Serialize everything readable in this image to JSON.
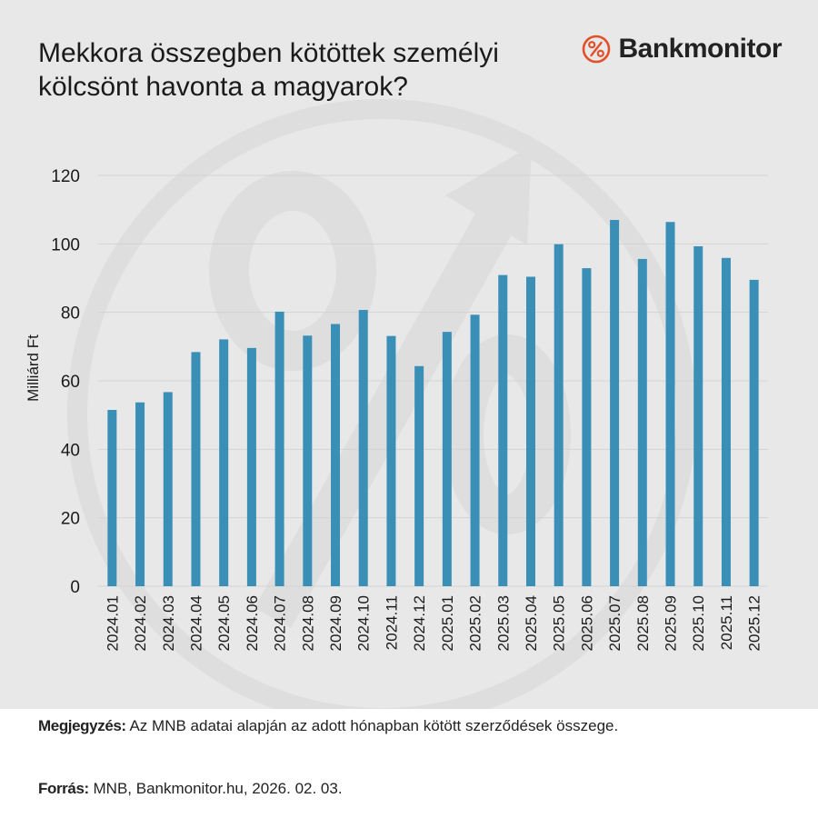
{
  "title": "Mekkora összegben kötöttek személyi kölcsönt havonta a magyarok?",
  "brand": {
    "name": "Bankmonitor",
    "icon": "percent-circle-icon",
    "icon_color": "#e2502a"
  },
  "note": {
    "label": "Megjegyzés:",
    "text": " Az MNB adatai alapján az adott hónapban kötött szerződések összege."
  },
  "source": {
    "label": "Forrás:",
    "text": " MNB, Bankmonitor.hu, 2026. 02. 03."
  },
  "colors": {
    "bar": "#3a8fb7",
    "grid": "#d3d3d3",
    "background": "#e8e8e8",
    "watermark": "#dcdcdc"
  },
  "chart_data": {
    "type": "bar",
    "title": "Mekkora összegben kötöttek személyi kölcsönt havonta a magyarok?",
    "xlabel": "",
    "ylabel": "Milliárd Ft",
    "ylim": [
      0,
      120
    ],
    "yticks": [
      0,
      20,
      40,
      60,
      80,
      100,
      120
    ],
    "grid": true,
    "categories": [
      "2024.01",
      "2024.02",
      "2024.03",
      "2024.04",
      "2024.05",
      "2024.06",
      "2024.07",
      "2024.08",
      "2024.09",
      "2024.10",
      "2024.11",
      "2024.12",
      "2025.01",
      "2025.02",
      "2025.03",
      "2025.04",
      "2025.05",
      "2025.06",
      "2025.07",
      "2025.08",
      "2025.09",
      "2025.10",
      "2025.11",
      "2025.12"
    ],
    "values": [
      51.5,
      53.7,
      56.7,
      68.4,
      72.1,
      69.6,
      80.2,
      73.2,
      76.6,
      80.7,
      73.1,
      64.3,
      74.3,
      79.3,
      90.9,
      90.4,
      99.9,
      92.9,
      107.0,
      95.6,
      106.4,
      99.3,
      95.9,
      89.5
    ]
  }
}
